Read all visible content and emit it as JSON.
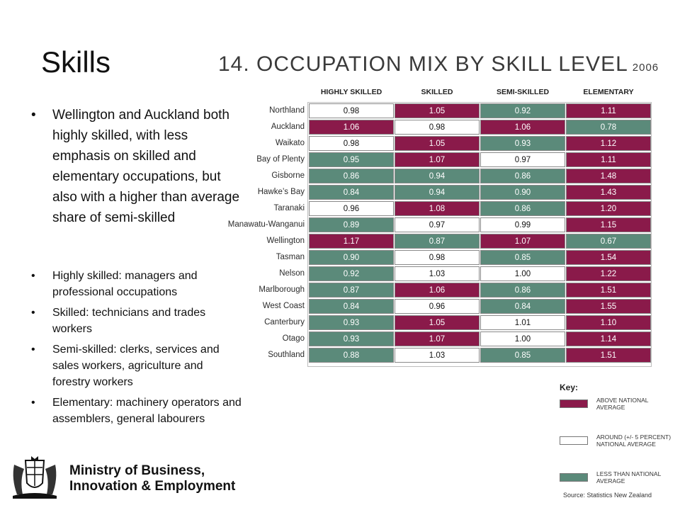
{
  "slide": {
    "title": "Skills",
    "main_bullet": "Wellington and Auckland both highly skilled, with less emphasis on skilled and elementary occupations, but also with a higher than average share of semi-skilled",
    "definitions": [
      "Highly skilled: managers and professional occupations",
      "Skilled: technicians and trades workers",
      "Semi-skilled: clerks, services and sales workers, agriculture and forestry workers",
      "Elementary: machinery operators and assemblers, general labourers"
    ]
  },
  "logo": {
    "line1": "Ministry of Business,",
    "line2": "Innovation & Employment"
  },
  "colors": {
    "above": "#8a1a4a",
    "around": "#ffffff",
    "less": "#5b8a7a"
  },
  "chart_data": {
    "type": "table",
    "title": "14. OCCUPATION MIX BY SKILL LEVEL",
    "year": "2006",
    "columns": [
      "HIGHLY SKILLED",
      "SKILLED",
      "SEMI-SKILLED",
      "ELEMENTARY"
    ],
    "rows": [
      {
        "region": "Northland",
        "values": [
          "0.98",
          "1.05",
          "0.92",
          "1.11"
        ],
        "levels": [
          "around",
          "above",
          "less",
          "above"
        ]
      },
      {
        "region": "Auckland",
        "values": [
          "1.06",
          "0.98",
          "1.06",
          "0.78"
        ],
        "levels": [
          "above",
          "around",
          "above",
          "less"
        ]
      },
      {
        "region": "Waikato",
        "values": [
          "0.98",
          "1.05",
          "0.93",
          "1.12"
        ],
        "levels": [
          "around",
          "above",
          "less",
          "above"
        ]
      },
      {
        "region": "Bay of Plenty",
        "values": [
          "0.95",
          "1.07",
          "0.97",
          "1.11"
        ],
        "levels": [
          "less",
          "above",
          "around",
          "above"
        ]
      },
      {
        "region": "Gisborne",
        "values": [
          "0.86",
          "0.94",
          "0.86",
          "1.48"
        ],
        "levels": [
          "less",
          "less",
          "less",
          "above"
        ]
      },
      {
        "region": "Hawke’s Bay",
        "values": [
          "0.84",
          "0.94",
          "0.90",
          "1.43"
        ],
        "levels": [
          "less",
          "less",
          "less",
          "above"
        ]
      },
      {
        "region": "Taranaki",
        "values": [
          "0.96",
          "1.08",
          "0.86",
          "1.20"
        ],
        "levels": [
          "around",
          "above",
          "less",
          "above"
        ]
      },
      {
        "region": "Manawatu-Wanganui",
        "values": [
          "0.89",
          "0.97",
          "0.99",
          "1.15"
        ],
        "levels": [
          "less",
          "around",
          "around",
          "above"
        ]
      },
      {
        "region": "Wellington",
        "values": [
          "1.17",
          "0.87",
          "1.07",
          "0.67"
        ],
        "levels": [
          "above",
          "less",
          "above",
          "less"
        ]
      },
      {
        "region": "Tasman",
        "values": [
          "0.90",
          "0.98",
          "0.85",
          "1.54"
        ],
        "levels": [
          "less",
          "around",
          "less",
          "above"
        ]
      },
      {
        "region": "Nelson",
        "values": [
          "0.92",
          "1.03",
          "1.00",
          "1.22"
        ],
        "levels": [
          "less",
          "around",
          "around",
          "above"
        ]
      },
      {
        "region": "Marlborough",
        "values": [
          "0.87",
          "1.06",
          "0.86",
          "1.51"
        ],
        "levels": [
          "less",
          "above",
          "less",
          "above"
        ]
      },
      {
        "region": "West Coast",
        "values": [
          "0.84",
          "0.96",
          "0.84",
          "1.55"
        ],
        "levels": [
          "less",
          "around",
          "less",
          "above"
        ]
      },
      {
        "region": "Canterbury",
        "values": [
          "0.93",
          "1.05",
          "1.01",
          "1.10"
        ],
        "levels": [
          "less",
          "above",
          "around",
          "above"
        ]
      },
      {
        "region": "Otago",
        "values": [
          "0.93",
          "1.07",
          "1.00",
          "1.14"
        ],
        "levels": [
          "less",
          "above",
          "around",
          "above"
        ]
      },
      {
        "region": "Southland",
        "values": [
          "0.88",
          "1.03",
          "0.85",
          "1.51"
        ],
        "levels": [
          "less",
          "around",
          "less",
          "above"
        ]
      }
    ],
    "key": {
      "title": "Key:",
      "items": [
        {
          "level": "above",
          "label": "ABOVE NATIONAL AVERAGE"
        },
        {
          "level": "around",
          "label": "AROUND (+/- 5 PERCENT) NATIONAL AVERAGE"
        },
        {
          "level": "less",
          "label": "LESS THAN NATIONAL AVERAGE"
        }
      ]
    },
    "source": "Source: Statistics New Zealand"
  }
}
